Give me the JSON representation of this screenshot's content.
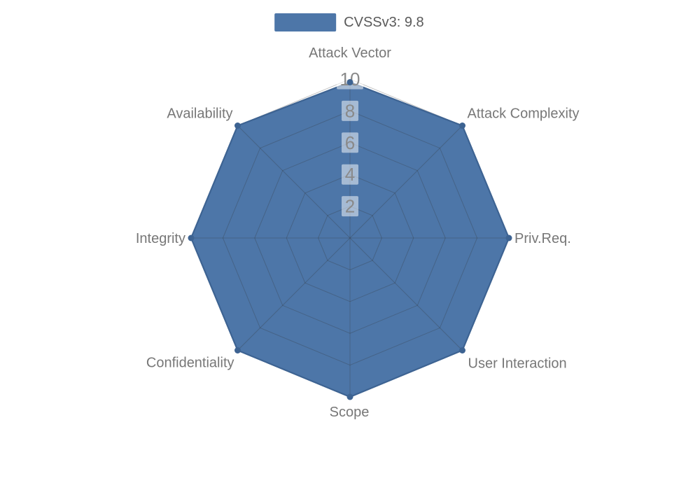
{
  "legend": {
    "label": "CVSSv3: 9.8",
    "position": "top-center"
  },
  "chart_data": {
    "type": "radar",
    "title": "",
    "axes": [
      "Attack Vector",
      "Attack Complexity",
      "Priv.Req.",
      "User Interaction",
      "Scope",
      "Confidentiality",
      "Integrity",
      "Availability"
    ],
    "series": [
      {
        "name": "CVSSv3: 9.8",
        "values": [
          9.8,
          10,
          10,
          10,
          10,
          10,
          10,
          10
        ],
        "color": "#4d76a8"
      }
    ],
    "scale": {
      "min": 0,
      "max": 10,
      "ticks": [
        2,
        4,
        6,
        8,
        10
      ]
    },
    "grid": {
      "shape": "polygon",
      "rings": 5,
      "spokes": 8,
      "grid_on": true
    },
    "legend_position": "top-center",
    "colors": {
      "area_fill": "#4d76a8",
      "line": "#3d6392",
      "grid_line": "#333333",
      "axis_label": "#777777",
      "tick_label": "#8a8a8a",
      "legend_text": "#5a5a5a",
      "tick_box": "#ffffff",
      "background": "#ffffff"
    }
  }
}
